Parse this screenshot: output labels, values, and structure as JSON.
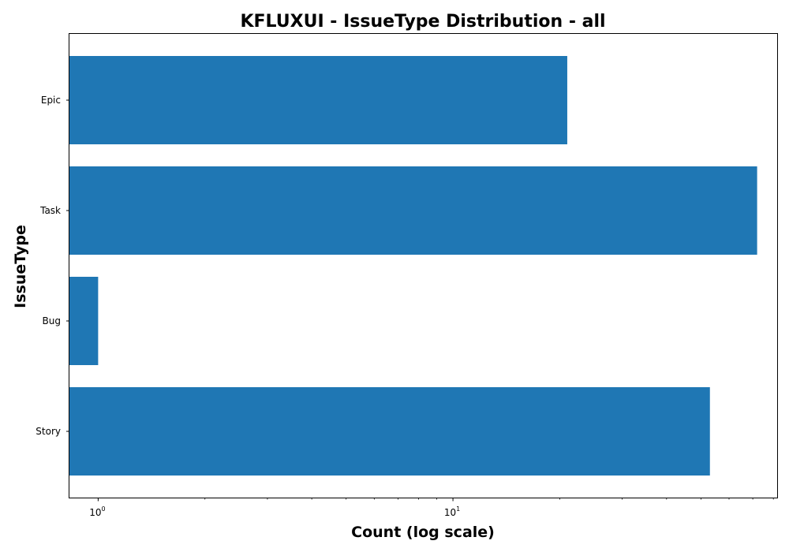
{
  "chart_data": {
    "type": "bar",
    "orientation": "horizontal",
    "title": "KFLUXUI - IssueType Distribution - all",
    "xlabel": "Count (log scale)",
    "ylabel": "IssueType",
    "x_scale": "log",
    "xlim": [
      0.83,
      82
    ],
    "x_major_ticks": [
      {
        "value": 1,
        "base": "10",
        "exp": "0"
      },
      {
        "value": 10,
        "base": "10",
        "exp": "1"
      }
    ],
    "categories": [
      "Epic",
      "Task",
      "Bug",
      "Story"
    ],
    "values": [
      21,
      72,
      1,
      53
    ],
    "grid": false,
    "legend": "none",
    "colors": {
      "bar": "#1f77b4",
      "axes": "#000000",
      "background": "#ffffff"
    }
  }
}
